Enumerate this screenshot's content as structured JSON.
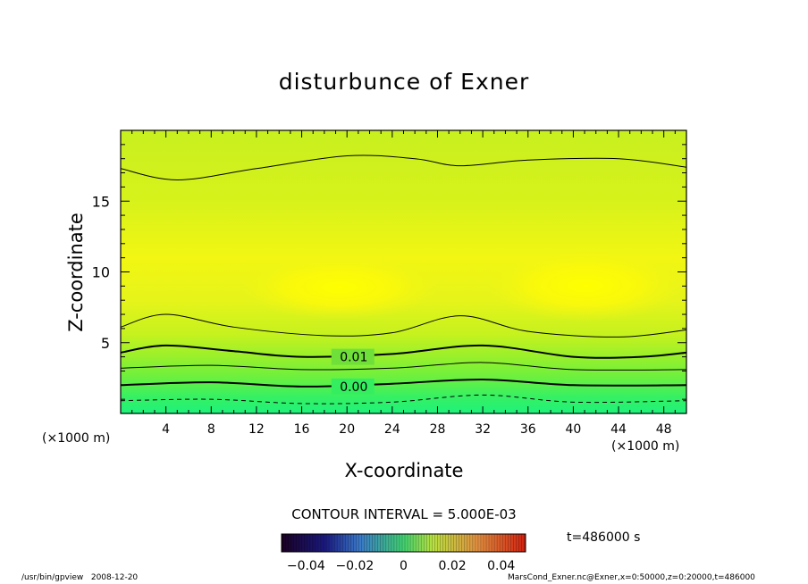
{
  "chart_data": {
    "type": "contour",
    "title": "disturbunce of Exner",
    "xlabel": "X-coordinate",
    "ylabel": "Z-coordinate",
    "x_unit_left": "(×1000 m)",
    "x_unit_right": "(×1000 m)",
    "xlim": [
      0,
      50
    ],
    "ylim": [
      0,
      20
    ],
    "xticks": [
      "4",
      "8",
      "12",
      "16",
      "20",
      "24",
      "28",
      "32",
      "36",
      "40",
      "44",
      "48"
    ],
    "yticks": [
      "5",
      "10",
      "15"
    ],
    "contour_labels": [
      "0.01",
      "0.00"
    ],
    "contour_interval_text": "CONTOUR INTERVAL = 5.000E-03",
    "time_text": "t=486000 s",
    "colorbar": {
      "min": -0.05,
      "max": 0.05,
      "ticks": [
        "−0.04",
        "−0.02",
        "0",
        "0.02",
        "0.04"
      ]
    },
    "contours": [
      {
        "level": -0.005,
        "style": "dashed",
        "points": [
          [
            0,
            0.9
          ],
          [
            8,
            1.0
          ],
          [
            16,
            0.7
          ],
          [
            24,
            0.8
          ],
          [
            32,
            1.3
          ],
          [
            40,
            0.8
          ],
          [
            50,
            0.9
          ]
        ]
      },
      {
        "level": 0.0,
        "style": "bold",
        "points": [
          [
            0,
            2.0
          ],
          [
            8,
            2.2
          ],
          [
            16,
            1.9
          ],
          [
            24,
            2.1
          ],
          [
            32,
            2.4
          ],
          [
            40,
            2.0
          ],
          [
            50,
            2.0
          ]
        ]
      },
      {
        "level": 0.005,
        "style": "thin",
        "points": [
          [
            0,
            3.2
          ],
          [
            8,
            3.4
          ],
          [
            16,
            3.1
          ],
          [
            24,
            3.2
          ],
          [
            32,
            3.6
          ],
          [
            40,
            3.1
          ],
          [
            50,
            3.1
          ]
        ]
      },
      {
        "level": 0.01,
        "style": "bold",
        "points": [
          [
            0,
            4.3
          ],
          [
            4,
            4.8
          ],
          [
            10,
            4.4
          ],
          [
            16,
            4.0
          ],
          [
            24,
            4.2
          ],
          [
            32,
            4.8
          ],
          [
            40,
            4.0
          ],
          [
            46,
            4.0
          ],
          [
            50,
            4.3
          ]
        ]
      },
      {
        "level": 0.015,
        "style": "thin",
        "points": [
          [
            0,
            6.1
          ],
          [
            4,
            7.0
          ],
          [
            10,
            6.1
          ],
          [
            18,
            5.5
          ],
          [
            24,
            5.7
          ],
          [
            30,
            6.9
          ],
          [
            36,
            5.8
          ],
          [
            44,
            5.4
          ],
          [
            50,
            5.9
          ]
        ]
      },
      {
        "level": 0.015,
        "style": "thin",
        "points": [
          [
            0,
            17.3
          ],
          [
            5,
            16.5
          ],
          [
            12,
            17.3
          ],
          [
            20,
            18.2
          ],
          [
            26,
            18.0
          ],
          [
            30,
            17.5
          ],
          [
            36,
            17.9
          ],
          [
            44,
            18.0
          ],
          [
            50,
            17.4
          ]
        ]
      }
    ]
  },
  "footer": {
    "left": "/usr/bin/gpview   2008-12-20",
    "right": "MarsCond_Exner.nc@Exner,x=0:50000,z=0:20000,t=486000"
  }
}
